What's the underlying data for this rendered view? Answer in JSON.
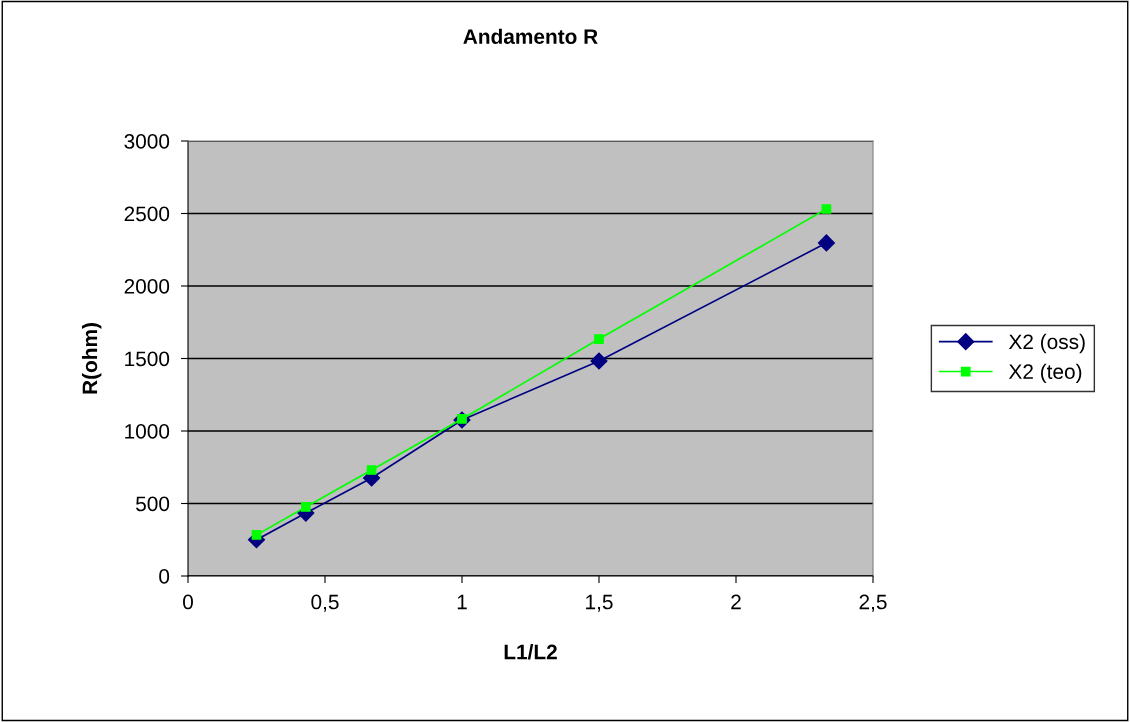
{
  "chart_data": {
    "type": "line",
    "title": "Andamento R",
    "xlabel": "L1/L2",
    "ylabel": "R(ohm)",
    "xlim": [
      0,
      2.5
    ],
    "ylim": [
      0,
      3000
    ],
    "xticks": [
      0,
      {
        "value": 0.5,
        "label": "0,5"
      },
      1,
      {
        "value": 1.5,
        "label": "1,5"
      },
      2,
      {
        "value": 2.5,
        "label": "2,5"
      }
    ],
    "yticks": [
      0,
      500,
      1000,
      1500,
      2000,
      2500,
      3000
    ],
    "grid": "y",
    "legend": "right",
    "series": [
      {
        "name": "X2 (oss)",
        "color": "#000080",
        "marker": "diamond",
        "x": [
          0.25,
          0.43,
          0.67,
          1.0,
          1.5,
          2.33
        ],
        "values": [
          250,
          434,
          676,
          1076,
          1483,
          2297
        ]
      },
      {
        "name": "X2 (teo)",
        "color": "#00ff00",
        "marker": "square",
        "x": [
          0.25,
          0.43,
          0.67,
          1.0,
          1.5,
          2.33
        ],
        "values": [
          283,
          476,
          731,
          1083,
          1634,
          2531
        ]
      }
    ]
  }
}
